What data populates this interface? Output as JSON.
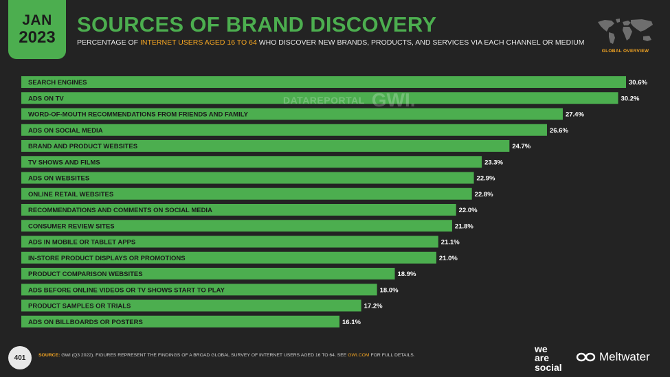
{
  "header": {
    "month": "JAN",
    "year": "2023",
    "title": "SOURCES OF BRAND DISCOVERY",
    "subtitle_pre": "PERCENTAGE OF ",
    "subtitle_hl": "INTERNET USERS AGED 16 TO 64",
    "subtitle_post": " WHO DISCOVER NEW BRANDS, PRODUCTS, AND SERVICES VIA EACH CHANNEL OR MEDIUM",
    "map_label": "GLOBAL OVERVIEW"
  },
  "watermark": {
    "datareportal": "DATAREPORTAL",
    "gwi": "GWI."
  },
  "chart_data": {
    "type": "bar",
    "orientation": "horizontal",
    "categories": [
      "SEARCH ENGINES",
      "ADS ON TV",
      "WORD-OF-MOUTH RECOMMENDATIONS FROM FRIENDS AND FAMILY",
      "ADS ON SOCIAL MEDIA",
      "BRAND AND PRODUCT WEBSITES",
      "TV SHOWS AND FILMS",
      "ADS ON WEBSITES",
      "ONLINE RETAIL WEBSITES",
      "RECOMMENDATIONS AND COMMENTS ON SOCIAL MEDIA",
      "CONSUMER REVIEW SITES",
      "ADS IN MOBILE OR TABLET APPS",
      "IN-STORE PRODUCT DISPLAYS OR PROMOTIONS",
      "PRODUCT COMPARISON WEBSITES",
      "ADS BEFORE ONLINE VIDEOS OR TV SHOWS START TO PLAY",
      "PRODUCT SAMPLES OR TRIALS",
      "ADS ON BILLBOARDS OR POSTERS"
    ],
    "values": [
      30.6,
      30.2,
      27.4,
      26.6,
      24.7,
      23.3,
      22.9,
      22.8,
      22.0,
      21.8,
      21.1,
      21.0,
      18.9,
      18.0,
      17.2,
      16.1
    ],
    "value_labels": [
      "30.6%",
      "30.2%",
      "27.4%",
      "26.6%",
      "24.7%",
      "23.3%",
      "22.9%",
      "22.8%",
      "22.0%",
      "21.8%",
      "21.1%",
      "21.0%",
      "18.9%",
      "18.0%",
      "17.2%",
      "16.1%"
    ],
    "xlim": [
      0,
      30.6
    ],
    "grid": false,
    "bar_color": "#4cae4f"
  },
  "footer": {
    "page_number": "401",
    "source_label": "SOURCE:",
    "source_text": " GWI (Q3 2022). FIGURES REPRESENT THE FINDINGS OF A BROAD GLOBAL SURVEY OF INTERNET USERS AGED 16 TO 64. SEE ",
    "source_link": "GWI.COM",
    "source_end": " FOR FULL DETAILS.",
    "logo_was": "we\nare\nsocial",
    "logo_meltwater": "Meltwater"
  },
  "colors": {
    "accent": "#4cae4f",
    "highlight": "#f5a623",
    "background": "#232323"
  }
}
